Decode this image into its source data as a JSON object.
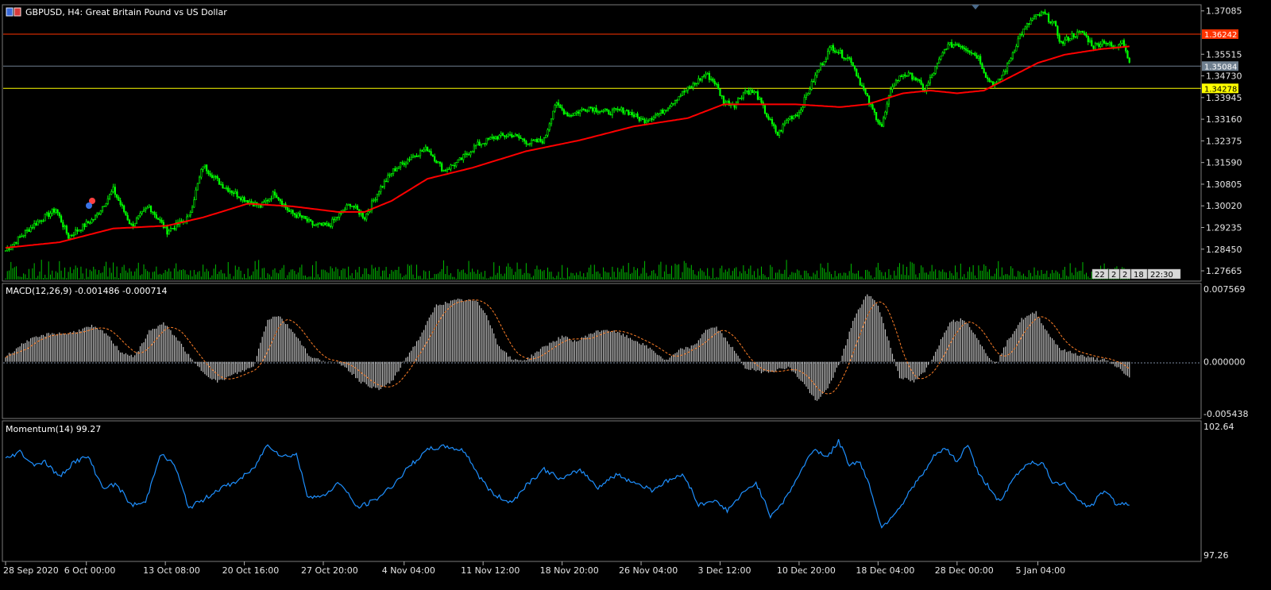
{
  "header": {
    "title": "GBPUSD, H4:  Great Britain Pound vs US Dollar",
    "icon": "chart-window-icon"
  },
  "chart_data": [
    {
      "type": "line",
      "name": "price",
      "ylim": [
        1.2735,
        1.3725
      ],
      "price_ticks": [
        "1.37085",
        "1.36242",
        "1.35515",
        "1.35084",
        "1.34730",
        "1.34278",
        "1.33945",
        "1.33160",
        "1.32375",
        "1.31590",
        "1.30805",
        "1.30020",
        "1.29235",
        "1.28450",
        "1.27665"
      ],
      "levels": [
        {
          "value": 1.36242,
          "label": "1.36242",
          "color": "#ff3300"
        },
        {
          "value": 1.35084,
          "label": "1.35084",
          "color": "#6f7f8f"
        },
        {
          "value": 1.34278,
          "label": "1.34278",
          "color": "#ffff00"
        }
      ],
      "close_anchors": [
        [
          0,
          1.284
        ],
        [
          15,
          1.293
        ],
        [
          28,
          1.299
        ],
        [
          35,
          1.289
        ],
        [
          50,
          1.296
        ],
        [
          60,
          1.306
        ],
        [
          70,
          1.293
        ],
        [
          80,
          1.3
        ],
        [
          90,
          1.291
        ],
        [
          102,
          1.296
        ],
        [
          110,
          1.315
        ],
        [
          120,
          1.308
        ],
        [
          132,
          1.303
        ],
        [
          142,
          1.3
        ],
        [
          150,
          1.305
        ],
        [
          158,
          1.298
        ],
        [
          165,
          1.296
        ],
        [
          172,
          1.293
        ],
        [
          180,
          1.293
        ],
        [
          192,
          1.301
        ],
        [
          200,
          1.296
        ],
        [
          208,
          1.306
        ],
        [
          216,
          1.313
        ],
        [
          226,
          1.318
        ],
        [
          235,
          1.321
        ],
        [
          244,
          1.313
        ],
        [
          252,
          1.316
        ],
        [
          262,
          1.322
        ],
        [
          272,
          1.325
        ],
        [
          282,
          1.326
        ],
        [
          292,
          1.323
        ],
        [
          300,
          1.324
        ],
        [
          306,
          1.337
        ],
        [
          314,
          1.333
        ],
        [
          325,
          1.336
        ],
        [
          335,
          1.334
        ],
        [
          345,
          1.335
        ],
        [
          355,
          1.331
        ],
        [
          365,
          1.334
        ],
        [
          375,
          1.34
        ],
        [
          383,
          1.344
        ],
        [
          390,
          1.348
        ],
        [
          395,
          1.345
        ],
        [
          400,
          1.338
        ],
        [
          406,
          1.337
        ],
        [
          412,
          1.342
        ],
        [
          418,
          1.341
        ],
        [
          424,
          1.333
        ],
        [
          430,
          1.326
        ],
        [
          436,
          1.332
        ],
        [
          442,
          1.334
        ],
        [
          448,
          1.343
        ],
        [
          454,
          1.351
        ],
        [
          460,
          1.358
        ],
        [
          466,
          1.355
        ],
        [
          471,
          1.353
        ],
        [
          476,
          1.345
        ],
        [
          482,
          1.336
        ],
        [
          488,
          1.329
        ],
        [
          494,
          1.344
        ],
        [
          500,
          1.348
        ],
        [
          506,
          1.347
        ],
        [
          512,
          1.342
        ],
        [
          518,
          1.35
        ],
        [
          524,
          1.358
        ],
        [
          530,
          1.359
        ],
        [
          536,
          1.357
        ],
        [
          542,
          1.354
        ],
        [
          547,
          1.346
        ],
        [
          552,
          1.344
        ],
        [
          558,
          1.351
        ],
        [
          565,
          1.362
        ],
        [
          572,
          1.368
        ],
        [
          578,
          1.37
        ],
        [
          584,
          1.366
        ],
        [
          588,
          1.359
        ],
        [
          594,
          1.362
        ],
        [
          600,
          1.363
        ],
        [
          606,
          1.358
        ],
        [
          612,
          1.36
        ],
        [
          618,
          1.357
        ],
        [
          622,
          1.361
        ],
        [
          626,
          1.352
        ]
      ],
      "ma_anchors": [
        [
          0,
          1.285
        ],
        [
          30,
          1.287
        ],
        [
          60,
          1.292
        ],
        [
          90,
          1.293
        ],
        [
          110,
          1.296
        ],
        [
          135,
          1.301
        ],
        [
          160,
          1.3
        ],
        [
          185,
          1.298
        ],
        [
          200,
          1.298
        ],
        [
          215,
          1.302
        ],
        [
          235,
          1.31
        ],
        [
          260,
          1.314
        ],
        [
          290,
          1.32
        ],
        [
          320,
          1.324
        ],
        [
          350,
          1.329
        ],
        [
          380,
          1.332
        ],
        [
          400,
          1.337
        ],
        [
          420,
          1.337
        ],
        [
          440,
          1.337
        ],
        [
          465,
          1.336
        ],
        [
          480,
          1.337
        ],
        [
          500,
          1.341
        ],
        [
          515,
          1.342
        ],
        [
          530,
          1.341
        ],
        [
          545,
          1.342
        ],
        [
          560,
          1.347
        ],
        [
          575,
          1.352
        ],
        [
          590,
          1.355
        ],
        [
          610,
          1.357
        ],
        [
          626,
          1.358
        ]
      ],
      "volume_scale": [
        1,
        26
      ]
    },
    {
      "type": "bar",
      "name": "macd",
      "title": "MACD(12,26,9) -0.001486 -0.000714",
      "ylim": [
        -0.005438,
        0.007569
      ],
      "ticks": [
        "0.007569",
        "0.000000",
        "-0.005438"
      ],
      "anchors": [
        [
          0,
          0.0005
        ],
        [
          12,
          0.0021
        ],
        [
          25,
          0.0028
        ],
        [
          35,
          0.0028
        ],
        [
          48,
          0.0035
        ],
        [
          56,
          0.0028
        ],
        [
          64,
          0.001
        ],
        [
          72,
          0.0005
        ],
        [
          80,
          0.003
        ],
        [
          88,
          0.0038
        ],
        [
          96,
          0.0022
        ],
        [
          104,
          0.0001
        ],
        [
          110,
          -0.001
        ],
        [
          118,
          -0.002
        ],
        [
          128,
          -0.0012
        ],
        [
          138,
          -0.0005
        ],
        [
          146,
          0.0042
        ],
        [
          152,
          0.0046
        ],
        [
          162,
          0.0026
        ],
        [
          170,
          0.0004
        ],
        [
          178,
          0.0001
        ],
        [
          188,
          -0.0003
        ],
        [
          198,
          -0.002
        ],
        [
          208,
          -0.0028
        ],
        [
          216,
          -0.0018
        ],
        [
          222,
          0.0001
        ],
        [
          230,
          0.0022
        ],
        [
          240,
          0.0056
        ],
        [
          252,
          0.0061
        ],
        [
          262,
          0.006
        ],
        [
          268,
          0.0047
        ],
        [
          274,
          0.0018
        ],
        [
          282,
          0.0002
        ],
        [
          290,
          0.0002
        ],
        [
          300,
          0.0015
        ],
        [
          310,
          0.0025
        ],
        [
          318,
          0.002
        ],
        [
          326,
          0.0028
        ],
        [
          334,
          0.0032
        ],
        [
          342,
          0.0028
        ],
        [
          352,
          0.002
        ],
        [
          360,
          0.0012
        ],
        [
          368,
          0.0001
        ],
        [
          376,
          0.0012
        ],
        [
          384,
          0.0016
        ],
        [
          390,
          0.0032
        ],
        [
          396,
          0.0034
        ],
        [
          404,
          0.0016
        ],
        [
          412,
          -0.0006
        ],
        [
          420,
          -0.001
        ],
        [
          428,
          -0.0009
        ],
        [
          436,
          -0.0005
        ],
        [
          444,
          -0.002
        ],
        [
          452,
          -0.004
        ],
        [
          460,
          -0.002
        ],
        [
          466,
          0.0006
        ],
        [
          472,
          0.004
        ],
        [
          480,
          0.0068
        ],
        [
          486,
          0.0056
        ],
        [
          492,
          0.002
        ],
        [
          498,
          -0.0015
        ],
        [
          506,
          -0.002
        ],
        [
          512,
          -0.001
        ],
        [
          518,
          0.001
        ],
        [
          526,
          0.004
        ],
        [
          534,
          0.0042
        ],
        [
          540,
          0.0028
        ],
        [
          546,
          0.0008
        ],
        [
          552,
          -0.0002
        ],
        [
          558,
          0.002
        ],
        [
          566,
          0.0042
        ],
        [
          574,
          0.0049
        ],
        [
          580,
          0.003
        ],
        [
          588,
          0.0012
        ],
        [
          596,
          0.0008
        ],
        [
          604,
          0.0004
        ],
        [
          612,
          0.0002
        ],
        [
          620,
          -0.0006
        ],
        [
          626,
          -0.0016
        ]
      ],
      "signal_lag": 6
    },
    {
      "type": "line",
      "name": "momentum",
      "title": "Momentum(14) 99.27",
      "ylim": [
        97.26,
        102.64
      ],
      "ticks": [
        "102.64",
        "97.26"
      ],
      "anchors": [
        [
          0,
          101.2
        ],
        [
          8,
          101.5
        ],
        [
          15,
          101.0
        ],
        [
          22,
          101.1
        ],
        [
          30,
          100.5
        ],
        [
          38,
          101.1
        ],
        [
          46,
          101.3
        ],
        [
          54,
          100.1
        ],
        [
          62,
          100.2
        ],
        [
          70,
          99.4
        ],
        [
          78,
          99.5
        ],
        [
          86,
          101.4
        ],
        [
          94,
          101.0
        ],
        [
          102,
          99.3
        ],
        [
          110,
          99.6
        ],
        [
          118,
          100.0
        ],
        [
          128,
          100.3
        ],
        [
          138,
          100.8
        ],
        [
          146,
          101.8
        ],
        [
          154,
          101.3
        ],
        [
          162,
          101.4
        ],
        [
          168,
          99.8
        ],
        [
          176,
          99.7
        ],
        [
          186,
          100.3
        ],
        [
          196,
          99.3
        ],
        [
          206,
          99.6
        ],
        [
          216,
          100.2
        ],
        [
          226,
          101.0
        ],
        [
          236,
          101.6
        ],
        [
          246,
          101.7
        ],
        [
          256,
          101.5
        ],
        [
          264,
          100.5
        ],
        [
          272,
          99.8
        ],
        [
          282,
          99.5
        ],
        [
          290,
          100.2
        ],
        [
          300,
          100.8
        ],
        [
          310,
          100.4
        ],
        [
          320,
          100.8
        ],
        [
          330,
          100.1
        ],
        [
          340,
          100.6
        ],
        [
          350,
          100.3
        ],
        [
          360,
          100.0
        ],
        [
          370,
          100.4
        ],
        [
          378,
          100.6
        ],
        [
          386,
          99.4
        ],
        [
          394,
          99.6
        ],
        [
          402,
          99.2
        ],
        [
          410,
          99.8
        ],
        [
          418,
          100.3
        ],
        [
          426,
          99.0
        ],
        [
          434,
          99.6
        ],
        [
          442,
          100.6
        ],
        [
          450,
          101.6
        ],
        [
          458,
          101.3
        ],
        [
          464,
          101.9
        ],
        [
          470,
          101.0
        ],
        [
          476,
          101.1
        ],
        [
          482,
          100.0
        ],
        [
          488,
          98.5
        ],
        [
          494,
          99.0
        ],
        [
          500,
          99.5
        ],
        [
          506,
          100.2
        ],
        [
          512,
          100.7
        ],
        [
          518,
          101.4
        ],
        [
          524,
          101.6
        ],
        [
          530,
          101.1
        ],
        [
          536,
          101.8
        ],
        [
          542,
          100.6
        ],
        [
          548,
          100.1
        ],
        [
          554,
          99.5
        ],
        [
          562,
          100.5
        ],
        [
          570,
          101.1
        ],
        [
          578,
          101.0
        ],
        [
          584,
          100.2
        ],
        [
          590,
          100.3
        ],
        [
          596,
          99.7
        ],
        [
          604,
          99.3
        ],
        [
          612,
          100.0
        ],
        [
          618,
          99.5
        ],
        [
          626,
          99.4
        ]
      ]
    }
  ],
  "time_axis": [
    {
      "label": "28 Sep 2020",
      "bar": 0
    },
    {
      "label": "6 Oct 00:00",
      "bar": 45
    },
    {
      "label": "13 Oct 08:00",
      "bar": 89
    },
    {
      "label": "20 Oct 16:00",
      "bar": 133
    },
    {
      "label": "27 Oct 20:00",
      "bar": 177
    },
    {
      "label": "4 Nov 04:00",
      "bar": 222
    },
    {
      "label": "11 Nov 12:00",
      "bar": 266
    },
    {
      "label": "18 Nov 20:00",
      "bar": 310
    },
    {
      "label": "26 Nov 04:00",
      "bar": 354
    },
    {
      "label": "3 Dec 12:00",
      "bar": 398
    },
    {
      "label": "10 Dec 20:00",
      "bar": 442
    },
    {
      "label": "18 Dec 04:00",
      "bar": 486
    },
    {
      "label": "28 Dec 00:00",
      "bar": 530
    },
    {
      "label": "5 Jan 04:00",
      "bar": 575
    }
  ],
  "countdown": {
    "labels": [
      "22",
      "2",
      "2",
      "18",
      "22:30"
    ]
  },
  "colors": {
    "bull": "#00ff00",
    "bear": "#00ff00",
    "ma": "#ff0000",
    "macd_hist": "#c0c0c0",
    "macd_signal": "#ff7f27",
    "momentum": "#1e90ff",
    "volume": "#00c000"
  }
}
